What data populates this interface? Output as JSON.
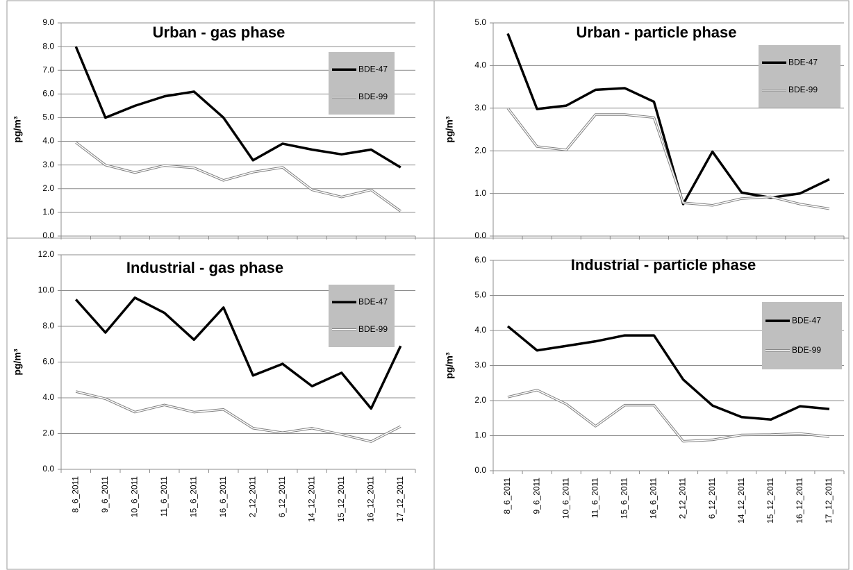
{
  "chart_data": [
    {
      "type": "line",
      "title": "Urban - gas phase",
      "y_label": "pg/m³",
      "categories": [
        null,
        null,
        null,
        null,
        null,
        null,
        null,
        null,
        null,
        null,
        null,
        null
      ],
      "ylim": [
        0,
        9
      ],
      "yticks": [
        {
          "value": 0,
          "label": "0.0"
        },
        {
          "value": 1,
          "label": "1.0"
        },
        {
          "value": 2,
          "label": "2.0"
        },
        {
          "value": 3,
          "label": "3.0"
        },
        {
          "value": 4,
          "label": "4.0"
        },
        {
          "value": 5,
          "label": "5.0"
        },
        {
          "value": 6,
          "label": "6.0"
        },
        {
          "value": 7,
          "label": "7.0"
        },
        {
          "value": 8,
          "label": "8.0"
        },
        {
          "value": 9,
          "label": "9.0"
        }
      ],
      "grid": true,
      "series": [
        {
          "name": "BDE-47",
          "color": "#000000",
          "line_style": "solid",
          "values": [
            8.0,
            5.0,
            5.5,
            5.9,
            6.1,
            5.0,
            3.2,
            3.9,
            3.65,
            3.45,
            3.65,
            2.9
          ]
        },
        {
          "name": "BDE-99",
          "color": "#808080",
          "line_style": "double",
          "values": [
            3.95,
            3.0,
            2.68,
            2.98,
            2.88,
            2.35,
            2.7,
            2.9,
            1.95,
            1.65,
            1.95,
            1.05
          ]
        }
      ]
    },
    {
      "type": "line",
      "title": "Urban - particle phase",
      "y_label": "pg/m³",
      "categories": [
        null,
        null,
        null,
        null,
        null,
        null,
        null,
        null,
        null,
        null,
        null,
        null
      ],
      "ylim": [
        0,
        5
      ],
      "yticks": [
        {
          "value": 0,
          "label": "0.0"
        },
        {
          "value": 1,
          "label": "1.0"
        },
        {
          "value": 2,
          "label": "2.0"
        },
        {
          "value": 3,
          "label": "3.0"
        },
        {
          "value": 4,
          "label": "4.0"
        },
        {
          "value": 5,
          "label": "5.0"
        }
      ],
      "grid": true,
      "series": [
        {
          "name": "BDE-47",
          "color": "#000000",
          "line_style": "solid",
          "values": [
            4.75,
            2.98,
            3.06,
            3.43,
            3.47,
            3.15,
            0.75,
            1.98,
            1.02,
            0.9,
            1.0,
            1.33
          ]
        },
        {
          "name": "BDE-99",
          "color": "#808080",
          "line_style": "double",
          "values": [
            3.0,
            2.1,
            2.02,
            2.85,
            2.85,
            2.78,
            0.78,
            0.72,
            0.88,
            0.92,
            0.75,
            0.64
          ]
        }
      ]
    },
    {
      "type": "line",
      "title": "Industrial - gas phase",
      "y_label": "pg/m³",
      "categories": [
        "8_6_2011",
        "9_6_2011",
        "10_6_2011",
        "11_6_2011",
        "15_6_2011",
        "16_6_2011",
        "2_12_2011",
        "6_12_2011",
        "14_12_2011",
        "15_12_2011",
        "16_12_2011",
        "17_12_2011"
      ],
      "ylim": [
        0,
        12
      ],
      "yticks": [
        {
          "value": 0,
          "label": "0.0"
        },
        {
          "value": 2,
          "label": "2.0"
        },
        {
          "value": 4,
          "label": "4.0"
        },
        {
          "value": 6,
          "label": "6.0"
        },
        {
          "value": 8,
          "label": "8.0"
        },
        {
          "value": 10,
          "label": "10.0"
        },
        {
          "value": 12,
          "label": "12.0"
        }
      ],
      "grid": true,
      "series": [
        {
          "name": "BDE-47",
          "color": "#000000",
          "line_style": "solid",
          "values": [
            9.5,
            7.65,
            9.6,
            8.75,
            7.25,
            9.05,
            5.25,
            5.9,
            4.65,
            5.4,
            3.4,
            6.9
          ]
        },
        {
          "name": "BDE-99",
          "color": "#808080",
          "line_style": "double",
          "values": [
            4.35,
            3.95,
            3.2,
            3.6,
            3.2,
            3.35,
            2.3,
            2.05,
            2.3,
            1.95,
            1.55,
            2.4
          ]
        }
      ]
    },
    {
      "type": "line",
      "title": "Industrial - particle phase",
      "y_label": "pg/m³",
      "categories": [
        "8_6_2011",
        "9_6_2011",
        "10_6_2011",
        "11_6_2011",
        "15_6_2011",
        "16_6_2011",
        "2_12_2011",
        "6_12_2011",
        "14_12_2011",
        "15_12_2011",
        "16_12_2011",
        "17_12_2011"
      ],
      "ylim": [
        0,
        6
      ],
      "yticks": [
        {
          "value": 0,
          "label": "0.0"
        },
        {
          "value": 1,
          "label": "1.0"
        },
        {
          "value": 2,
          "label": "2.0"
        },
        {
          "value": 3,
          "label": "3.0"
        },
        {
          "value": 4,
          "label": "4.0"
        },
        {
          "value": 5,
          "label": "5.0"
        },
        {
          "value": 6,
          "label": "6.0"
        }
      ],
      "grid": true,
      "series": [
        {
          "name": "BDE-47",
          "color": "#000000",
          "line_style": "solid",
          "values": [
            4.12,
            3.43,
            3.56,
            3.69,
            3.86,
            3.86,
            2.6,
            1.86,
            1.53,
            1.46,
            1.84,
            1.76
          ]
        },
        {
          "name": "BDE-99",
          "color": "#808080",
          "line_style": "double",
          "values": [
            2.1,
            2.3,
            1.9,
            1.27,
            1.87,
            1.87,
            0.84,
            0.88,
            1.02,
            1.03,
            1.06,
            0.97
          ]
        }
      ]
    }
  ]
}
